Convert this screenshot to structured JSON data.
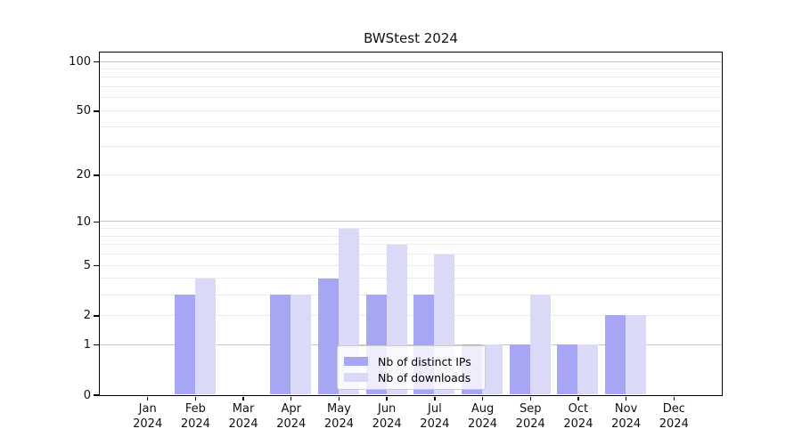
{
  "title": "BWStest 2024",
  "legend": {
    "items": [
      {
        "label": "Nb of distinct IPs"
      },
      {
        "label": "Nb of downloads"
      }
    ]
  },
  "chart_data": {
    "type": "bar",
    "title": "BWStest 2024",
    "yscale": "log1p",
    "ymax": 114,
    "ylim": [
      0,
      114
    ],
    "yticks": [
      0,
      1,
      2,
      5,
      10,
      20,
      50,
      100
    ],
    "grid_major": [
      1,
      10,
      100
    ],
    "grid_minor": [
      2,
      3,
      4,
      5,
      6,
      7,
      8,
      9,
      20,
      30,
      40,
      50,
      60,
      70,
      80,
      90
    ],
    "legend_position": "lower center",
    "categories": [
      {
        "label": "Jan",
        "sub": "2024"
      },
      {
        "label": "Feb",
        "sub": "2024"
      },
      {
        "label": "Mar",
        "sub": "2024"
      },
      {
        "label": "Apr",
        "sub": "2024"
      },
      {
        "label": "May",
        "sub": "2024"
      },
      {
        "label": "Jun",
        "sub": "2024"
      },
      {
        "label": "Jul",
        "sub": "2024"
      },
      {
        "label": "Aug",
        "sub": "2024"
      },
      {
        "label": "Sep",
        "sub": "2024"
      },
      {
        "label": "Oct",
        "sub": "2024"
      },
      {
        "label": "Nov",
        "sub": "2024"
      },
      {
        "label": "Dec",
        "sub": "2024"
      }
    ],
    "series": [
      {
        "name": "Nb of distinct IPs",
        "color": "#a6a6f4",
        "values": [
          0,
          3,
          0,
          3,
          4,
          3,
          3,
          1,
          1,
          1,
          2,
          0
        ]
      },
      {
        "name": "Nb of downloads",
        "color": "#dadaf8",
        "values": [
          0,
          4,
          0,
          3,
          9,
          7,
          6,
          1,
          3,
          1,
          2,
          0
        ]
      }
    ],
    "colors": {
      "axis": "#000000",
      "grid_major": "#c6c6c6",
      "grid_minor": "#ececec",
      "legend_border": "#cccccc"
    }
  }
}
